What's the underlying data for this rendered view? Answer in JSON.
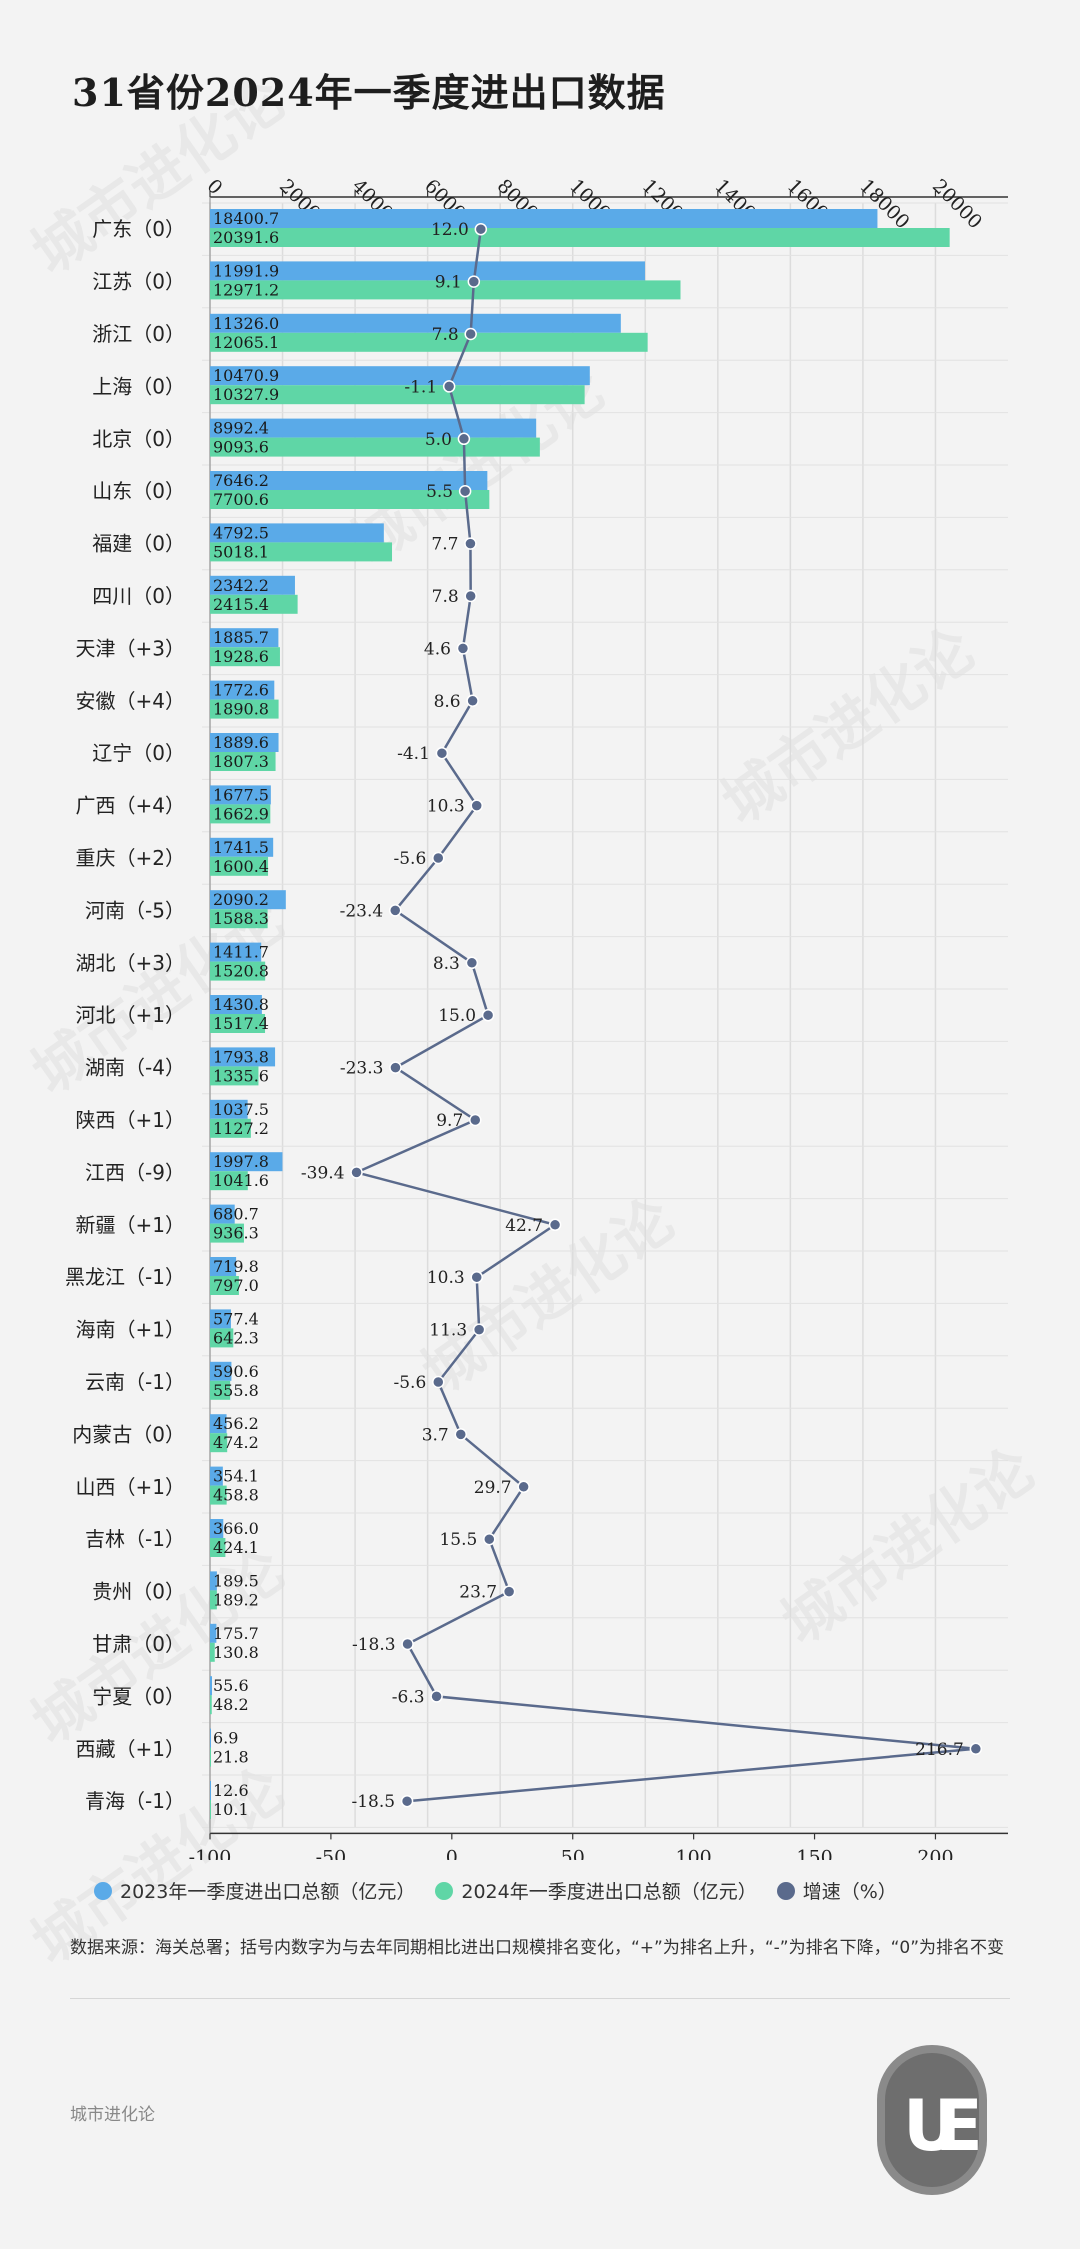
{
  "title": "31省份2024年一季度进出口数据",
  "legend": [
    {
      "label": "2023年一季度进出口总额（亿元）",
      "color": "#5aaae8"
    },
    {
      "label": "2024年一季度进出口总额（亿元）",
      "color": "#5fd6a6"
    },
    {
      "label": "增速（%）",
      "color": "#5a6a8c"
    }
  ],
  "note": "数据来源：海关总署；括号内数字为与去年同期相比进出口规模排名变化，“+”为排名上升，“-”为排名下降，“0”为排名不变",
  "footer_source": "城市进化论",
  "watermark": "城市进化论",
  "chart_data": {
    "type": "bar",
    "top_axis": {
      "ticks": [
        0,
        2000,
        4000,
        6000,
        8000,
        10000,
        12000,
        14000,
        16000,
        18000,
        20000
      ],
      "range": [
        0,
        22000
      ]
    },
    "bottom_axis": {
      "ticks": [
        -100,
        -50,
        0,
        50,
        100,
        150,
        200
      ],
      "range": [
        -100,
        230
      ]
    },
    "categories": [
      "广东（0）",
      "江苏（0）",
      "浙江（0）",
      "上海（0）",
      "北京（0）",
      "山东（0）",
      "福建（0）",
      "四川（0）",
      "天津（+3）",
      "安徽（+4）",
      "辽宁（0）",
      "广西（+4）",
      "重庆（+2）",
      "河南（-5）",
      "湖北（+3）",
      "河北（+1）",
      "湖南（-4）",
      "陕西（+1）",
      "江西（-9）",
      "新疆（+1）",
      "黑龙江（-1）",
      "海南（+1）",
      "云南（-1）",
      "内蒙古（0）",
      "山西（+1）",
      "吉林（-1）",
      "贵州（0）",
      "甘肃（0）",
      "宁夏（0）",
      "西藏（+1）",
      "青海（-1）"
    ],
    "series": [
      {
        "name": "2023年一季度进出口总额（亿元）",
        "color": "#5aaae8",
        "values": [
          18400.7,
          11991.9,
          11326.0,
          10470.9,
          8992.4,
          7646.2,
          4792.5,
          2342.2,
          1885.7,
          1772.6,
          1889.6,
          1677.5,
          1741.5,
          2090.2,
          1411.7,
          1430.8,
          1793.8,
          1037.5,
          1997.8,
          680.7,
          719.8,
          577.4,
          590.6,
          456.2,
          354.1,
          366.0,
          189.5,
          175.7,
          55.6,
          6.9,
          12.6
        ],
        "labels": [
          "18400.7",
          "11991.9",
          "11326.0",
          "10470.9",
          "8992.4",
          "7646.2",
          "4792.5",
          "2342.2",
          "1885.7",
          "1772.6",
          "1889.6",
          "1677.5",
          "1741.5",
          "2090.2",
          "1411.7",
          "1430.8",
          "1793.8",
          "1037.5",
          "1997.8",
          "680.7",
          "719.8",
          "577.4",
          "590.6",
          "456.2",
          "354.1",
          "366.0",
          "189.5",
          "175.7",
          "55.6",
          "6.9",
          "12.6"
        ]
      },
      {
        "name": "2024年一季度进出口总额（亿元）",
        "color": "#5fd6a6",
        "values": [
          20391.6,
          12971.2,
          12065.1,
          10327.9,
          9093.6,
          7700.6,
          5018.1,
          2415.4,
          1928.6,
          1890.8,
          1807.3,
          1662.9,
          1600.4,
          1588.3,
          1520.8,
          1517.4,
          1335.6,
          1127.2,
          1041.6,
          936.3,
          797.0,
          642.3,
          555.8,
          474.2,
          458.8,
          424.1,
          189.2,
          130.8,
          48.2,
          21.8,
          10.1
        ],
        "labels": [
          "20391.6",
          "12971.2",
          "12065.1",
          "10327.9",
          "9093.6",
          "7700.6",
          "5018.1",
          "2415.4",
          "1928.6",
          "1890.8",
          "1807.3",
          "1662.9",
          "1600.4",
          "1588.3",
          "1520.8",
          "1517.4",
          "1335.6",
          "1127.2",
          "1041.6",
          "936.3",
          "797.0",
          "642.3",
          "555.8",
          "474.2",
          "458.8",
          "424.1",
          "189.2",
          "130.8",
          "48.2",
          "21.8",
          "10.1"
        ]
      },
      {
        "name": "增速（%）",
        "color": "#5a6a8c",
        "values": [
          12.0,
          9.1,
          7.8,
          -1.1,
          5.0,
          5.5,
          7.7,
          7.8,
          4.6,
          8.6,
          -4.1,
          10.3,
          -5.6,
          -23.4,
          8.3,
          15.0,
          -23.3,
          9.7,
          -39.4,
          42.7,
          10.3,
          11.3,
          -5.6,
          3.7,
          29.7,
          15.5,
          23.7,
          -18.3,
          -6.3,
          216.7,
          -18.5
        ],
        "labels": [
          "12.0",
          "9.1",
          "7.8",
          "-1.1",
          "5.0",
          "5.5",
          "7.7",
          "7.8",
          "4.6",
          "8.6",
          "-4.1",
          "10.3",
          "-5.6",
          "-23.4",
          "8.3",
          "15.0",
          "-23.3",
          "9.7",
          "-39.4",
          "42.7",
          "10.3",
          "11.3",
          "-5.6",
          "3.7",
          "29.7",
          "15.5",
          "23.7",
          "-18.3",
          "-6.3",
          "216.7",
          "-18.5"
        ]
      }
    ]
  }
}
